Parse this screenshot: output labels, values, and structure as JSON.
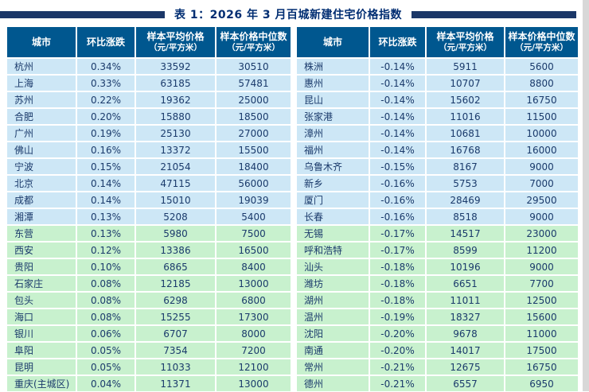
{
  "title": "表 1：2026 年 3 月百城新建住宅价格指数",
  "colors": {
    "header_bg": "#00578f",
    "row_blue": "#cde7f6",
    "row_green": "#c8f1ce",
    "text": "#1a3a6b",
    "title_color": "#002d72",
    "bar_color": "#1b3768",
    "edge_strip": "#d8d8d8"
  },
  "columns": [
    {
      "label": "城市",
      "sub": ""
    },
    {
      "label": "环比涨跌",
      "sub": ""
    },
    {
      "label": "样本平均价格",
      "sub": "（元/平方米）"
    },
    {
      "label": "样本价格中位数",
      "sub": "（元/平方米）"
    }
  ],
  "group_split": 10,
  "left_table": {
    "rows": [
      [
        "杭州",
        "0.34%",
        "33592",
        "30510"
      ],
      [
        "上海",
        "0.33%",
        "63185",
        "57481"
      ],
      [
        "苏州",
        "0.22%",
        "19362",
        "25000"
      ],
      [
        "合肥",
        "0.20%",
        "15880",
        "18500"
      ],
      [
        "广州",
        "0.19%",
        "25130",
        "27000"
      ],
      [
        "佛山",
        "0.16%",
        "13372",
        "15500"
      ],
      [
        "宁波",
        "0.15%",
        "21054",
        "18400"
      ],
      [
        "北京",
        "0.14%",
        "47115",
        "56000"
      ],
      [
        "成都",
        "0.14%",
        "15010",
        "19039"
      ],
      [
        "湘潭",
        "0.13%",
        "5208",
        "5400"
      ],
      [
        "东营",
        "0.13%",
        "5980",
        "7500"
      ],
      [
        "西安",
        "0.12%",
        "13386",
        "16500"
      ],
      [
        "贵阳",
        "0.10%",
        "6865",
        "8400"
      ],
      [
        "石家庄",
        "0.08%",
        "12185",
        "13000"
      ],
      [
        "包头",
        "0.08%",
        "6298",
        "6800"
      ],
      [
        "海口",
        "0.08%",
        "15255",
        "17300"
      ],
      [
        "银川",
        "0.06%",
        "6707",
        "8000"
      ],
      [
        "阜阳",
        "0.05%",
        "7354",
        "7200"
      ],
      [
        "昆明",
        "0.05%",
        "11033",
        "12100"
      ],
      [
        "重庆(主城区)",
        "0.04%",
        "11371",
        "13000"
      ]
    ]
  },
  "right_table": {
    "rows": [
      [
        "株洲",
        "-0.14%",
        "5911",
        "5600"
      ],
      [
        "惠州",
        "-0.14%",
        "10707",
        "8800"
      ],
      [
        "昆山",
        "-0.14%",
        "15602",
        "16750"
      ],
      [
        "张家港",
        "-0.14%",
        "11016",
        "11500"
      ],
      [
        "漳州",
        "-0.14%",
        "10681",
        "10000"
      ],
      [
        "福州",
        "-0.14%",
        "16768",
        "16000"
      ],
      [
        "乌鲁木齐",
        "-0.15%",
        "8167",
        "9000"
      ],
      [
        "新乡",
        "-0.16%",
        "5753",
        "7000"
      ],
      [
        "厦门",
        "-0.16%",
        "28469",
        "29500"
      ],
      [
        "长春",
        "-0.16%",
        "8518",
        "9000"
      ],
      [
        "无锡",
        "-0.17%",
        "14517",
        "23000"
      ],
      [
        "呼和浩特",
        "-0.17%",
        "8599",
        "11200"
      ],
      [
        "汕头",
        "-0.18%",
        "10196",
        "9000"
      ],
      [
        "潍坊",
        "-0.18%",
        "6651",
        "7700"
      ],
      [
        "湖州",
        "-0.18%",
        "11011",
        "12500"
      ],
      [
        "温州",
        "-0.19%",
        "18327",
        "15600"
      ],
      [
        "沈阳",
        "-0.20%",
        "9678",
        "11000"
      ],
      [
        "南通",
        "-0.20%",
        "14017",
        "17500"
      ],
      [
        "常州",
        "-0.21%",
        "12675",
        "16750"
      ],
      [
        "德州",
        "-0.21%",
        "6557",
        "6950"
      ]
    ]
  }
}
